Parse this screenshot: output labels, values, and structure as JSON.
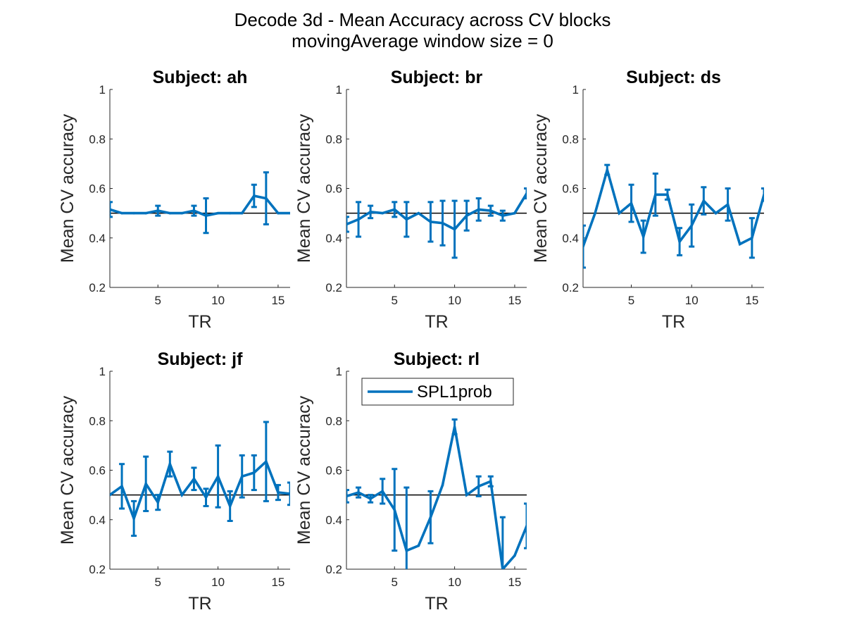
{
  "figure": {
    "title_line1": "Decode 3d - Mean Accuracy across CV blocks",
    "title_line2": "movingAverage window size = 0"
  },
  "colors": {
    "series": "#0072BD",
    "chance_line": "#000000",
    "axis": "#262626"
  },
  "legend": {
    "label": "SPL1prob",
    "placement": "top-inside",
    "panel": 4
  },
  "chart_data": [
    {
      "type": "line",
      "title": "Subject: ah",
      "xlabel": "TR",
      "ylabel": "Mean CV accuracy",
      "xlim": [
        1,
        16
      ],
      "ylim": [
        0.2,
        1
      ],
      "xticks": [
        "5",
        "10",
        "15"
      ],
      "yticks": [
        "0.2",
        "0.4",
        "0.6",
        "0.8",
        "1"
      ],
      "chance": 0.5,
      "series": [
        {
          "name": "SPL1prob",
          "x": [
            1,
            2,
            3,
            4,
            5,
            6,
            7,
            8,
            9,
            10,
            11,
            12,
            13,
            14,
            15,
            16
          ],
          "y": [
            0.515,
            0.5,
            0.5,
            0.5,
            0.51,
            0.5,
            0.5,
            0.51,
            0.49,
            0.5,
            0.5,
            0.5,
            0.57,
            0.56,
            0.5,
            0.5
          ],
          "err": [
            0.03,
            0,
            0,
            0,
            0.02,
            0,
            0,
            0.02,
            0.07,
            0,
            0,
            0,
            0.045,
            0.105,
            0,
            0
          ]
        }
      ]
    },
    {
      "type": "line",
      "title": "Subject: br",
      "xlabel": "TR",
      "ylabel": "Mean CV accuracy",
      "xlim": [
        1,
        16
      ],
      "ylim": [
        0.2,
        1
      ],
      "xticks": [
        "5",
        "10",
        "15"
      ],
      "yticks": [
        "0.2",
        "0.4",
        "0.6",
        "0.8",
        "1"
      ],
      "chance": 0.5,
      "series": [
        {
          "name": "SPL1prob",
          "x": [
            1,
            2,
            3,
            4,
            5,
            6,
            7,
            8,
            9,
            10,
            11,
            12,
            13,
            14,
            15,
            16
          ],
          "y": [
            0.455,
            0.475,
            0.505,
            0.5,
            0.515,
            0.475,
            0.5,
            0.465,
            0.46,
            0.435,
            0.49,
            0.515,
            0.51,
            0.49,
            0.5,
            0.58
          ],
          "err": [
            0.03,
            0.07,
            0.025,
            0,
            0.03,
            0.07,
            0,
            0.08,
            0.09,
            0.115,
            0.06,
            0.045,
            0.02,
            0.02,
            0,
            0.02
          ]
        }
      ]
    },
    {
      "type": "line",
      "title": "Subject: ds",
      "xlabel": "TR",
      "ylabel": "Mean CV accuracy",
      "xlim": [
        1,
        16
      ],
      "ylim": [
        0.2,
        1
      ],
      "xticks": [
        "5",
        "10",
        "15"
      ],
      "yticks": [
        "0.2",
        "0.4",
        "0.6",
        "0.8",
        "1"
      ],
      "chance": 0.5,
      "series": [
        {
          "name": "SPL1prob",
          "x": [
            1,
            2,
            3,
            4,
            5,
            6,
            7,
            8,
            9,
            10,
            11,
            12,
            13,
            14,
            15,
            16
          ],
          "y": [
            0.365,
            0.5,
            0.675,
            0.5,
            0.54,
            0.405,
            0.575,
            0.575,
            0.385,
            0.45,
            0.55,
            0.5,
            0.535,
            0.375,
            0.4,
            0.575
          ],
          "err": [
            0.085,
            0,
            0.02,
            0,
            0.075,
            0.065,
            0.085,
            0.02,
            0.055,
            0.085,
            0.055,
            0,
            0.065,
            0,
            0.08,
            0.025
          ]
        }
      ]
    },
    {
      "type": "line",
      "title": "Subject: jf",
      "xlabel": "TR",
      "ylabel": "Mean CV accuracy",
      "xlim": [
        1,
        16
      ],
      "ylim": [
        0.2,
        1
      ],
      "xticks": [
        "5",
        "10",
        "15"
      ],
      "yticks": [
        "0.2",
        "0.4",
        "0.6",
        "0.8",
        "1"
      ],
      "chance": 0.5,
      "series": [
        {
          "name": "SPL1prob",
          "x": [
            1,
            2,
            3,
            4,
            5,
            6,
            7,
            8,
            9,
            10,
            11,
            12,
            13,
            14,
            15,
            16
          ],
          "y": [
            0.5,
            0.535,
            0.405,
            0.545,
            0.47,
            0.625,
            0.5,
            0.565,
            0.49,
            0.575,
            0.455,
            0.575,
            0.59,
            0.635,
            0.51,
            0.505
          ],
          "err": [
            0,
            0.09,
            0.07,
            0.11,
            0.03,
            0.05,
            0,
            0.045,
            0.035,
            0.125,
            0.06,
            0.085,
            0.07,
            0.16,
            0.03,
            0.045
          ]
        }
      ]
    },
    {
      "type": "line",
      "title": "Subject: rl",
      "xlabel": "TR",
      "ylabel": "Mean CV accuracy",
      "xlim": [
        1,
        16
      ],
      "ylim": [
        0.2,
        1
      ],
      "xticks": [
        "5",
        "10",
        "15"
      ],
      "yticks": [
        "0.2",
        "0.4",
        "0.6",
        "0.8",
        "1"
      ],
      "chance": 0.5,
      "series": [
        {
          "name": "SPL1prob",
          "x": [
            1,
            2,
            3,
            4,
            5,
            6,
            7,
            8,
            9,
            10,
            11,
            12,
            13,
            14,
            15,
            16
          ],
          "y": [
            0.495,
            0.51,
            0.485,
            0.515,
            0.44,
            0.275,
            0.295,
            0.41,
            0.54,
            0.775,
            0.5,
            0.535,
            0.555,
            0.2,
            0.255,
            0.375
          ],
          "err": [
            0.025,
            0.02,
            0.015,
            0.05,
            0.165,
            0.255,
            0,
            0.105,
            0,
            0.03,
            0,
            0.04,
            0.02,
            0.21,
            0,
            0.09
          ]
        }
      ]
    }
  ]
}
